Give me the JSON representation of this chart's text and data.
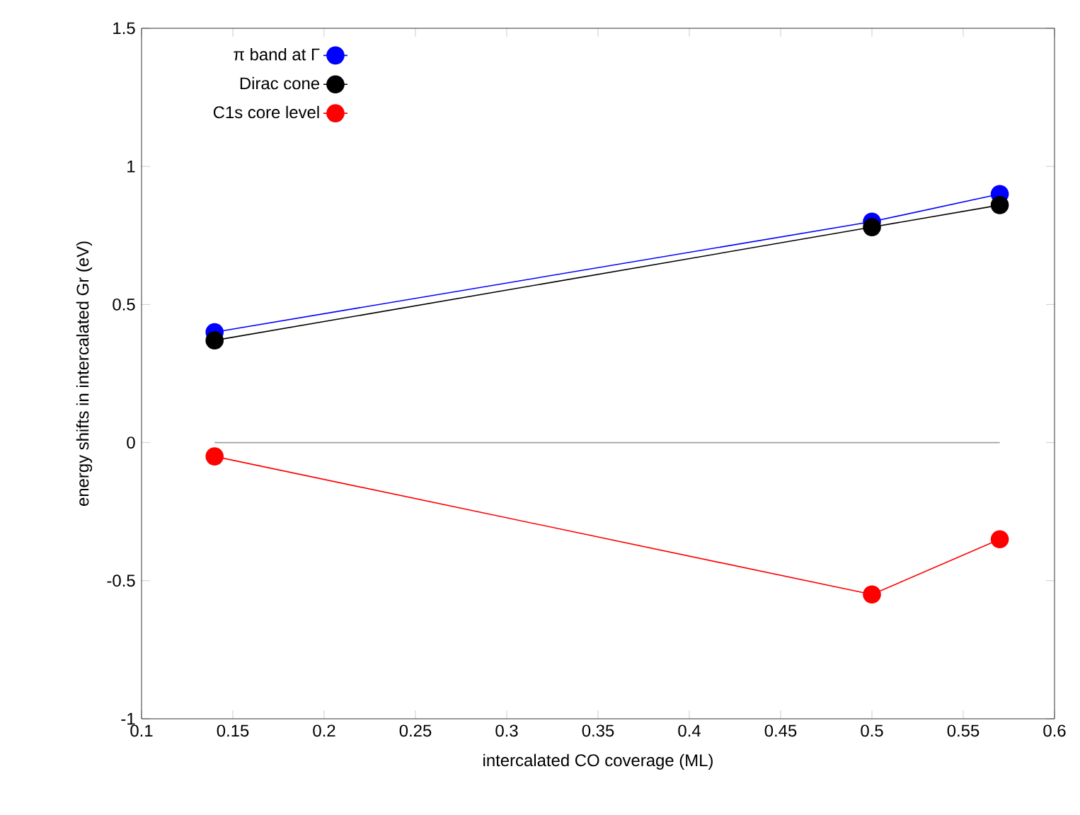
{
  "chart_data": {
    "type": "line",
    "xlabel": "intercalated CO coverage (ML)",
    "ylabel": "energy shifts in intercalated Gr (eV)",
    "x": [
      0.14,
      0.5,
      0.57
    ],
    "series": [
      {
        "name": "π band at Γ",
        "color": "#0000ff",
        "values": [
          0.4,
          0.8,
          0.9
        ]
      },
      {
        "name": "Dirac cone",
        "color": "#000000",
        "values": [
          0.37,
          0.78,
          0.86
        ]
      },
      {
        "name": "C1s core level",
        "color": "#ff0000",
        "values": [
          -0.05,
          -0.55,
          -0.35
        ]
      },
      {
        "color": "#a0a0a0",
        "x": [
          0.14,
          0.57
        ],
        "values": [
          0,
          0
        ],
        "marker": "none"
      }
    ],
    "xlim": [
      0.1,
      0.6
    ],
    "ylim": [
      -1,
      1.5
    ],
    "xticks": [
      0.1,
      0.15,
      0.2,
      0.25,
      0.3,
      0.35,
      0.4,
      0.45,
      0.5,
      0.55,
      0.6
    ],
    "yticks": [
      -1,
      -0.5,
      0,
      0.5,
      1,
      1.5
    ],
    "marker": "circle",
    "line_style": "solid",
    "legend": "top left",
    "grid": false
  }
}
